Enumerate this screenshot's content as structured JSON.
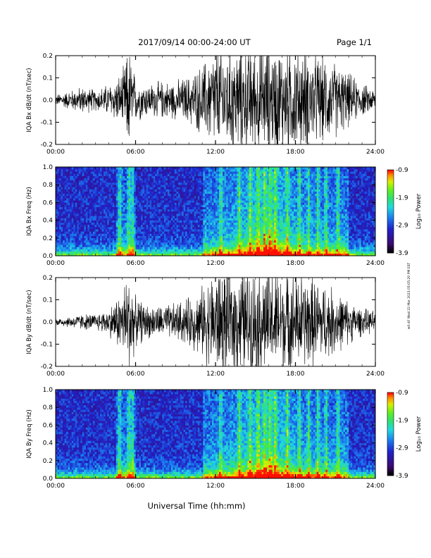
{
  "header": {
    "date_range": "2017/09/14  00:00-24:00 UT",
    "page": "Page 1/1"
  },
  "footer": {
    "xlabel": "Universal Time (hh:mm)",
    "stamp": "w0-4F Wed 22 Mar 2023 05:05:20 PM EST"
  },
  "colors": {
    "trace": "#000000",
    "colormap": [
      "#000000",
      "#3c0b6e",
      "#2020c8",
      "#1a7cf0",
      "#20d8e0",
      "#30e070",
      "#60f020",
      "#d8f000",
      "#ff9000",
      "#ff1000"
    ]
  },
  "chart_data": [
    {
      "type": "line",
      "ylabel": "IQA Bx dB/dt (nT/sec)",
      "xlim": [
        "00:00",
        "24:00"
      ],
      "x_ticks": [
        "00:00",
        "06:00",
        "12:00",
        "18:00",
        "24:00"
      ],
      "ylim": [
        -0.2,
        0.2
      ],
      "y_ticks": [
        "-0.2",
        "-0.1",
        "0.0",
        "0.1",
        "0.2"
      ],
      "x_hours": [
        0,
        1,
        2,
        3,
        4,
        5,
        5.5,
        6,
        7,
        8,
        9,
        10,
        11,
        12,
        13,
        14,
        15,
        16,
        17,
        18,
        19,
        20,
        21,
        22,
        23,
        24
      ],
      "envelope": [
        0.02,
        0.035,
        0.05,
        0.04,
        0.06,
        0.1,
        0.2,
        0.08,
        0.06,
        0.07,
        0.07,
        0.09,
        0.13,
        0.2,
        0.2,
        0.2,
        0.2,
        0.2,
        0.2,
        0.2,
        0.18,
        0.16,
        0.14,
        0.1,
        0.06,
        0.04
      ]
    },
    {
      "type": "heatmap",
      "ylabel": "IQA Bx Freq (Hz)",
      "xlim": [
        "00:00",
        "24:00"
      ],
      "x_ticks": [
        "00:00",
        "06:00",
        "12:00",
        "18:00",
        "24:00"
      ],
      "ylim": [
        0.0,
        1.0
      ],
      "y_ticks": [
        "0.0",
        "0.2",
        "0.4",
        "0.6",
        "0.8",
        "1.0"
      ],
      "colorbar": {
        "label": "Log₁₀ Power",
        "min": -3.9,
        "max": -0.9,
        "ticks": [
          "-0.9",
          "-1.9",
          "-2.9",
          "-3.9"
        ]
      }
    },
    {
      "type": "line",
      "ylabel": "IQA By dB/dt (nT/sec)",
      "xlim": [
        "00:00",
        "24:00"
      ],
      "x_ticks": [
        "00:00",
        "06:00",
        "12:00",
        "18:00",
        "24:00"
      ],
      "ylim": [
        -0.2,
        0.2
      ],
      "y_ticks": [
        "-0.2",
        "-0.1",
        "0.0",
        "0.1",
        "0.2"
      ],
      "x_hours": [
        0,
        1,
        2,
        3,
        4,
        5,
        5.5,
        6,
        7,
        8,
        9,
        10,
        11,
        12,
        13,
        14,
        15,
        16,
        17,
        18,
        19,
        20,
        21,
        22,
        23,
        24
      ],
      "envelope": [
        0.015,
        0.02,
        0.03,
        0.03,
        0.05,
        0.12,
        0.2,
        0.09,
        0.06,
        0.06,
        0.07,
        0.09,
        0.13,
        0.2,
        0.2,
        0.2,
        0.2,
        0.2,
        0.2,
        0.19,
        0.17,
        0.15,
        0.12,
        0.08,
        0.05,
        0.04
      ]
    },
    {
      "type": "heatmap",
      "ylabel": "IQA By Freq (Hz)",
      "xlim": [
        "00:00",
        "24:00"
      ],
      "x_ticks": [
        "00:00",
        "06:00",
        "12:00",
        "18:00",
        "24:00"
      ],
      "ylim": [
        0.0,
        1.0
      ],
      "y_ticks": [
        "0.0",
        "0.2",
        "0.4",
        "0.6",
        "0.8",
        "1.0"
      ],
      "colorbar": {
        "label": "Log₁₀ Power",
        "min": -3.9,
        "max": -0.9,
        "ticks": [
          "-0.9",
          "-1.9",
          "-2.9",
          "-3.9"
        ]
      }
    }
  ]
}
